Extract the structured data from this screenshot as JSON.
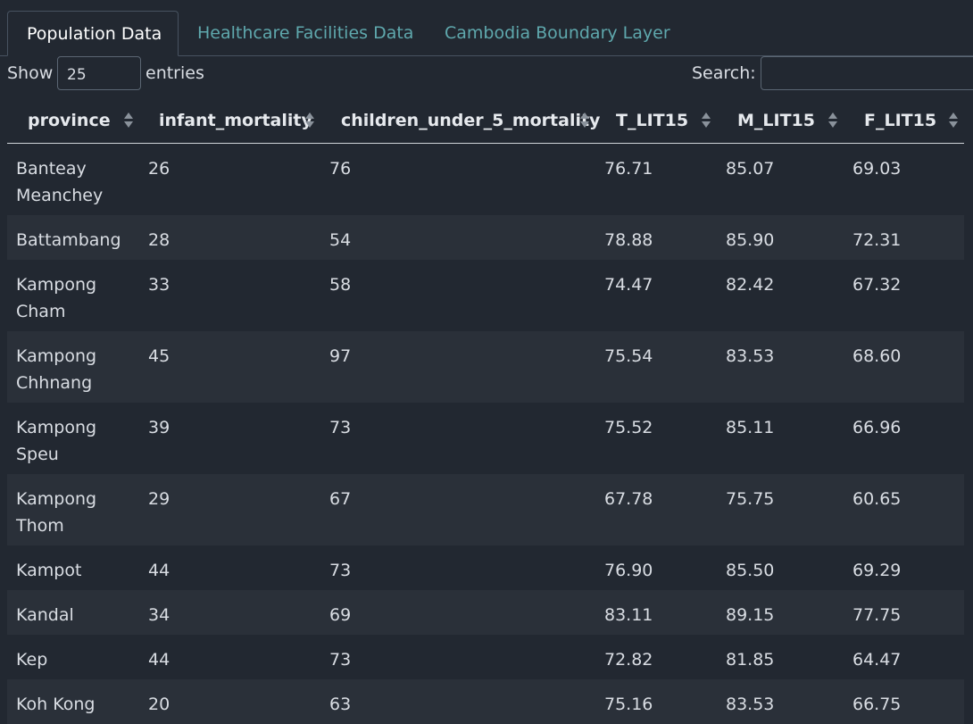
{
  "tabs": [
    {
      "label": "Population Data",
      "active": true
    },
    {
      "label": "Healthcare Facilities Data",
      "active": false
    },
    {
      "label": "Cambodia Boundary Layer",
      "active": false
    }
  ],
  "controls": {
    "show_label": "Show",
    "page_length": "25",
    "entries_label": "entries",
    "search_label": "Search:",
    "search_value": ""
  },
  "table": {
    "columns": [
      "province",
      "infant_mortality",
      "children_under_5_mortality",
      "T_LIT15",
      "M_LIT15",
      "F_LIT15"
    ],
    "rows": [
      [
        "Banteay Meanchey",
        "26",
        "76",
        "76.71",
        "85.07",
        "69.03"
      ],
      [
        "Battambang",
        "28",
        "54",
        "78.88",
        "85.90",
        "72.31"
      ],
      [
        "Kampong Cham",
        "33",
        "58",
        "74.47",
        "82.42",
        "67.32"
      ],
      [
        "Kampong Chhnang",
        "45",
        "97",
        "75.54",
        "83.53",
        "68.60"
      ],
      [
        "Kampong Speu",
        "39",
        "73",
        "75.52",
        "85.11",
        "66.96"
      ],
      [
        "Kampong Thom",
        "29",
        "67",
        "67.78",
        "75.75",
        "60.65"
      ],
      [
        "Kampot",
        "44",
        "73",
        "76.90",
        "85.50",
        "69.29"
      ],
      [
        "Kandal",
        "34",
        "69",
        "83.11",
        "89.15",
        "77.75"
      ],
      [
        "Kep",
        "44",
        "73",
        "72.82",
        "81.85",
        "64.47"
      ],
      [
        "Koh Kong",
        "20",
        "63",
        "75.16",
        "83.53",
        "66.75"
      ]
    ]
  },
  "colors": {
    "background": "#222831",
    "row_alt": "#2a3039",
    "tab_link": "#5fa8ad"
  }
}
